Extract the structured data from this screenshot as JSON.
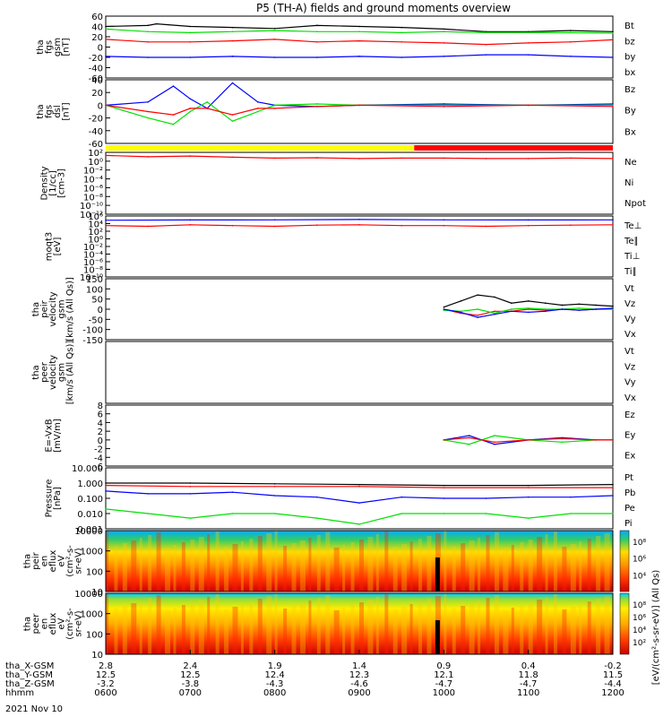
{
  "title": "P5 (TH-A) fields and ground moments overview",
  "date_label": "2021 Nov 10",
  "colors": {
    "black": "#000000",
    "red": "#ff0000",
    "green": "#00e000",
    "blue": "#0000ff",
    "yellow": "#ffff00",
    "bar_red": "#ff0000"
  },
  "chart_data": [
    {
      "type": "line",
      "ylabel": [
        "tha",
        "fgs",
        "gsm",
        "[nT]"
      ],
      "ylim": [
        -60,
        60
      ],
      "ytick_labels": [
        "60",
        "40",
        "20",
        "0",
        "-20",
        "-40",
        "-60"
      ],
      "legend": [
        {
          "label": "Bt",
          "color": "#000000"
        },
        {
          "label": "bz",
          "color": "#ff0000"
        },
        {
          "label": "by",
          "color": "#00e000"
        },
        {
          "label": "bx",
          "color": "#0000ff"
        }
      ],
      "series": [
        {
          "name": "Bt",
          "color": "#000000",
          "x": [
            0,
            0.5,
            0.6,
            1,
            1.5,
            2,
            2.5,
            3,
            3.5,
            4,
            4.5,
            5,
            5.5,
            6
          ],
          "y": [
            40,
            42,
            45,
            40,
            38,
            36,
            42,
            40,
            38,
            35,
            30,
            30,
            32,
            30
          ]
        },
        {
          "name": "bz",
          "color": "#ff0000",
          "x": [
            0,
            0.5,
            1,
            1.5,
            2,
            2.5,
            3,
            3.5,
            4,
            4.5,
            5,
            5.5,
            6
          ],
          "y": [
            15,
            10,
            10,
            12,
            15,
            10,
            12,
            10,
            8,
            5,
            8,
            10,
            14
          ]
        },
        {
          "name": "by",
          "color": "#00e000",
          "x": [
            0,
            0.5,
            1,
            1.5,
            2,
            2.5,
            3,
            3.5,
            4,
            4.5,
            5,
            5.5,
            6
          ],
          "y": [
            35,
            30,
            28,
            30,
            32,
            30,
            30,
            28,
            30,
            28,
            28,
            28,
            27
          ]
        },
        {
          "name": "bx",
          "color": "#0000ff",
          "x": [
            0,
            0.5,
            1,
            1.5,
            2,
            2.5,
            3,
            3.5,
            4,
            4.5,
            5,
            5.5,
            6
          ],
          "y": [
            -18,
            -20,
            -20,
            -18,
            -20,
            -20,
            -18,
            -20,
            -18,
            -15,
            -15,
            -18,
            -20
          ]
        }
      ]
    },
    {
      "type": "line",
      "ylabel": [
        "tha",
        "fgs",
        "dsl",
        "[nT]"
      ],
      "ylim": [
        -60,
        40
      ],
      "ytick_labels": [
        "40",
        "20",
        "0",
        "-20",
        "-40",
        "-60"
      ],
      "legend": [
        {
          "label": "Bz",
          "color": "#ff0000"
        },
        {
          "label": "By",
          "color": "#00e000"
        },
        {
          "label": "Bx",
          "color": "#0000ff"
        }
      ],
      "series": [
        {
          "name": "Bx",
          "color": "#0000ff",
          "x": [
            0,
            0.5,
            0.8,
            1,
            1.2,
            1.5,
            1.8,
            2,
            2.5,
            3,
            4,
            5,
            6
          ],
          "y": [
            0,
            5,
            30,
            10,
            -5,
            35,
            5,
            0,
            -2,
            0,
            2,
            0,
            2
          ]
        },
        {
          "name": "By",
          "color": "#00e000",
          "x": [
            0,
            0.5,
            0.8,
            1,
            1.2,
            1.5,
            1.8,
            2,
            2.5,
            3,
            4,
            5,
            6
          ],
          "y": [
            0,
            -20,
            -30,
            -10,
            5,
            -25,
            -10,
            0,
            2,
            0,
            0,
            0,
            0
          ]
        },
        {
          "name": "Bz",
          "color": "#ff0000",
          "x": [
            0,
            0.5,
            0.8,
            1,
            1.2,
            1.5,
            1.8,
            2,
            2.5,
            3,
            4,
            5,
            6
          ],
          "y": [
            0,
            -10,
            -15,
            -5,
            -5,
            -15,
            -5,
            -5,
            -2,
            0,
            -2,
            0,
            -2
          ]
        }
      ]
    },
    {
      "type": "line",
      "ylabel": [
        "Density",
        "[1/cc]",
        "[cm-3]"
      ],
      "scale": "log",
      "ylim": [
        1e-12,
        100.0
      ],
      "ytick_labels": [
        "10²",
        "10⁰",
        "10⁻²",
        "10⁻⁴",
        "10⁻⁶",
        "10⁻⁸",
        "10⁻¹⁰",
        "10⁻¹²"
      ],
      "legend": [
        {
          "label": "Ne",
          "color": "#ff0000"
        },
        {
          "label": "Ni",
          "color": "#000000"
        },
        {
          "label": "Npot",
          "color": "#0000ff"
        }
      ],
      "series": [
        {
          "name": "Ne",
          "color": "#ff0000",
          "x": [
            0,
            0.5,
            1,
            1.5,
            2,
            2.5,
            3,
            3.5,
            4,
            4.5,
            5,
            5.5,
            6
          ],
          "y": [
            20,
            10,
            15,
            8,
            5,
            6,
            4,
            5,
            5,
            4,
            4,
            5,
            4
          ]
        }
      ]
    },
    {
      "type": "line",
      "ylabel": [
        "moqt3",
        "[eV]"
      ],
      "scale": "log",
      "ylim": [
        1e-10,
        1000000.0
      ],
      "ytick_labels": [
        "10⁶",
        "10⁴",
        "10²",
        "10⁰",
        "10⁻²",
        "10⁻⁴",
        "10⁻⁶",
        "10⁻⁸",
        "10⁻¹⁰"
      ],
      "legend": [
        {
          "label": "Te⊥",
          "color": "#ff0000"
        },
        {
          "label": "Te∥",
          "color": "#000000"
        },
        {
          "label": "Ti⊥",
          "color": "#0000ff"
        },
        {
          "label": "Ti∥",
          "color": "#00e000"
        }
      ],
      "series": [
        {
          "name": "Ti",
          "color": "#0000ff",
          "x": [
            0,
            1,
            2,
            3,
            4,
            5,
            6
          ],
          "y": [
            80000,
            90000,
            100000,
            120000,
            100000,
            90000,
            100000
          ]
        },
        {
          "name": "Te",
          "color": "#ff0000",
          "x": [
            0,
            0.5,
            1,
            1.5,
            2,
            2.5,
            3,
            3.5,
            4,
            4.5,
            5,
            5.5,
            6
          ],
          "y": [
            3000,
            2000,
            5000,
            3000,
            2000,
            4000,
            5000,
            3000,
            3000,
            2000,
            3000,
            4000,
            5000
          ]
        }
      ]
    },
    {
      "type": "line",
      "ylabel": [
        "tha",
        "peir",
        "velocity",
        "gsm",
        "[km/s (All Qs)]"
      ],
      "ylim": [
        -150,
        150
      ],
      "ytick_labels": [
        "150",
        "100",
        "50",
        "0",
        "-50",
        "-100",
        "-150"
      ],
      "legend": [
        {
          "label": "Vt",
          "color": "#000000"
        },
        {
          "label": "Vz",
          "color": "#ff0000"
        },
        {
          "label": "Vy",
          "color": "#00e000"
        },
        {
          "label": "Vx",
          "color": "#0000ff"
        }
      ],
      "series": [
        {
          "name": "Vt",
          "color": "#000000",
          "x": [
            4.0,
            4.2,
            4.4,
            4.6,
            4.8,
            5,
            5.2,
            5.4,
            5.6,
            5.8,
            6
          ],
          "y": [
            10,
            40,
            70,
            60,
            30,
            40,
            30,
            20,
            25,
            20,
            15
          ]
        },
        {
          "name": "Vz",
          "color": "#ff0000",
          "x": [
            4.0,
            4.2,
            4.4,
            4.6,
            4.8,
            5,
            5.2,
            5.4,
            5.6,
            5.8,
            6
          ],
          "y": [
            0,
            -20,
            -30,
            -10,
            -10,
            0,
            -5,
            0,
            -5,
            0,
            0
          ]
        },
        {
          "name": "Vy",
          "color": "#00e000",
          "x": [
            4.0,
            4.2,
            4.4,
            4.6,
            4.8,
            5,
            5.2,
            5.4,
            5.6,
            5.8,
            6
          ],
          "y": [
            -5,
            -10,
            0,
            -20,
            0,
            5,
            0,
            0,
            5,
            0,
            0
          ]
        },
        {
          "name": "Vx",
          "color": "#0000ff",
          "x": [
            4.0,
            4.2,
            4.4,
            4.6,
            4.8,
            5,
            5.2,
            5.4,
            5.6,
            5.8,
            6
          ],
          "y": [
            0,
            -15,
            -40,
            -25,
            -10,
            -15,
            -10,
            0,
            -5,
            0,
            5
          ]
        }
      ]
    },
    {
      "type": "line",
      "ylabel": [
        "tha",
        "peer",
        "velocity",
        "gsm",
        "[km/s (All Qs)]"
      ],
      "ylim": [
        null,
        null
      ],
      "ytick_labels": [],
      "legend": [
        {
          "label": "Vt",
          "color": "#000000"
        },
        {
          "label": "Vz",
          "color": "#ff0000"
        },
        {
          "label": "Vy",
          "color": "#00e000"
        },
        {
          "label": "Vx",
          "color": "#0000ff"
        }
      ],
      "series": []
    },
    {
      "type": "line",
      "ylabel": [
        "E=-VxB",
        "[mV/m]"
      ],
      "ylim": [
        -6,
        8
      ],
      "ytick_labels": [
        "8",
        "6",
        "4",
        "2",
        "0",
        "-2",
        "-4",
        "-6"
      ],
      "legend": [
        {
          "label": "Ez",
          "color": "#ff0000"
        },
        {
          "label": "Ey",
          "color": "#00e000"
        },
        {
          "label": "Ex",
          "color": "#0000ff"
        }
      ],
      "series": [
        {
          "name": "Ex",
          "color": "#0000ff",
          "x": [
            4.0,
            4.3,
            4.6,
            5,
            5.4,
            5.8,
            6
          ],
          "y": [
            0,
            1,
            -1,
            0,
            0.5,
            0,
            0
          ]
        },
        {
          "name": "Ey",
          "color": "#00e000",
          "x": [
            4.0,
            4.3,
            4.6,
            5,
            5.4,
            5.8,
            6
          ],
          "y": [
            0,
            -1,
            1,
            0,
            -0.5,
            0,
            0
          ]
        },
        {
          "name": "Ez",
          "color": "#ff0000",
          "x": [
            4.0,
            4.3,
            4.6,
            5,
            5.4,
            5.8,
            6
          ],
          "y": [
            0,
            0.5,
            -0.5,
            0,
            0.3,
            0,
            0
          ]
        }
      ]
    },
    {
      "type": "line",
      "ylabel": [
        "Pressure",
        "[nPa]"
      ],
      "scale": "log",
      "ylim": [
        0.001,
        10
      ],
      "ytick_labels": [
        "10.000",
        "1.000",
        "0.100",
        "0.010",
        "0.001"
      ],
      "legend": [
        {
          "label": "Pt",
          "color": "#000000"
        },
        {
          "label": "Pb",
          "color": "#ff0000"
        },
        {
          "label": "Pe",
          "color": "#00e000"
        },
        {
          "label": "Pi",
          "color": "#0000ff"
        }
      ],
      "series": [
        {
          "name": "Pt",
          "color": "#000000",
          "x": [
            0,
            1,
            2,
            3,
            4,
            5,
            6
          ],
          "y": [
            1,
            1,
            0.9,
            0.8,
            0.7,
            0.7,
            0.8
          ]
        },
        {
          "name": "Pb",
          "color": "#ff0000",
          "x": [
            0,
            1,
            2,
            3,
            4,
            5,
            6
          ],
          "y": [
            0.7,
            0.6,
            0.6,
            0.6,
            0.5,
            0.5,
            0.5
          ]
        },
        {
          "name": "Pi",
          "color": "#0000ff",
          "x": [
            0,
            0.5,
            1,
            1.5,
            2,
            2.5,
            3,
            3.5,
            4,
            4.5,
            5,
            5.5,
            6
          ],
          "y": [
            0.3,
            0.2,
            0.2,
            0.25,
            0.15,
            0.12,
            0.05,
            0.12,
            0.1,
            0.1,
            0.12,
            0.12,
            0.15
          ]
        },
        {
          "name": "Pe",
          "color": "#00e000",
          "x": [
            0,
            0.5,
            1,
            1.5,
            2,
            2.5,
            3,
            3.5,
            4,
            4.5,
            5,
            5.5,
            6
          ],
          "y": [
            0.02,
            0.01,
            0.005,
            0.01,
            0.01,
            0.005,
            0.002,
            0.01,
            0.01,
            0.01,
            0.005,
            0.01,
            0.01
          ]
        }
      ]
    },
    {
      "type": "heatmap",
      "ylabel": [
        "tha",
        "peir",
        "en",
        "eflux",
        "eV",
        "(cm²-s-",
        "sr-eV)"
      ],
      "scale": "log",
      "ylim": [
        5,
        20000
      ],
      "ytick_labels": [
        "10000",
        "1000",
        "100",
        "10"
      ],
      "colorbar_ticks": [
        "10⁸",
        "10⁶",
        "10⁴"
      ]
    },
    {
      "type": "heatmap",
      "ylabel": [
        "tha",
        "peer",
        "en",
        "eflux",
        "eV",
        "(cm²-s-",
        "sr-eV)"
      ],
      "scale": "log",
      "ylim": [
        5,
        20000
      ],
      "ytick_labels": [
        "10000",
        "1000",
        "100",
        "10"
      ],
      "colorbar_ticks": [
        "10⁸",
        "10⁶",
        "10⁴",
        "10²"
      ]
    }
  ],
  "colorbar_label": "[eV/(cm²-s-sr-eV)] (All Qs)",
  "x_axis": {
    "rows": [
      {
        "label": "tha_X-GSM",
        "values": [
          "2.8",
          "2.4",
          "1.9",
          "1.4",
          "0.9",
          "0.4",
          "-0.2"
        ]
      },
      {
        "label": "tha_Y-GSM",
        "values": [
          "12.5",
          "12.5",
          "12.4",
          "12.3",
          "12.1",
          "11.8",
          "11.5"
        ]
      },
      {
        "label": "tha_Z-GSM",
        "values": [
          "-3.2",
          "-3.8",
          "-4.3",
          "-4.6",
          "-4.7",
          "-4.7",
          "-4.4"
        ]
      },
      {
        "label": "hhmm",
        "values": [
          "0600",
          "0700",
          "0800",
          "0900",
          "1000",
          "1100",
          "1200"
        ]
      }
    ]
  }
}
